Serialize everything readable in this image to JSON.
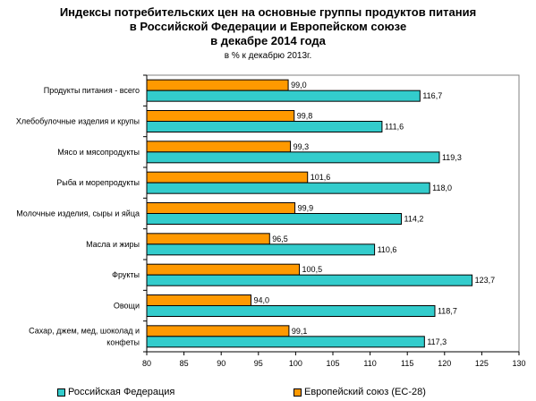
{
  "chart_data": {
    "type": "bar",
    "orientation": "horizontal",
    "title_lines": [
      "Индексы потребительских цен на основные группы продуктов питания",
      "в Российской Федерации и Европейском союзе",
      "в декабре 2014 года"
    ],
    "subtitle": "в % к декабрю 2013г.",
    "categories": [
      [
        "Продукты питания - всего"
      ],
      [
        "Хлебобулочные изделия и крупы"
      ],
      [
        "Мясо и мясопродукты"
      ],
      [
        "Рыба и морепродукты"
      ],
      [
        "Молочные изделия, сыры и яйца"
      ],
      [
        "Масла и жиры"
      ],
      [
        "Фрукты"
      ],
      [
        "Овощи"
      ],
      [
        "Сахар, джем, мед, шоколад и",
        "конфеты"
      ]
    ],
    "series": [
      {
        "name": "Европейский союз (ЕС-28)",
        "color": "#FF9900",
        "values": [
          99.0,
          99.8,
          99.3,
          101.6,
          99.9,
          96.5,
          100.5,
          94.0,
          99.1
        ]
      },
      {
        "name": "Российская Федерация",
        "color": "#33CCCC",
        "values": [
          116.7,
          111.6,
          119.3,
          118.0,
          114.2,
          110.6,
          123.7,
          118.7,
          117.3
        ]
      }
    ],
    "value_labels": {
      "Европейский союз (ЕС-28)": [
        "99,0",
        "99,8",
        "99,3",
        "101,6",
        "99,9",
        "96,5",
        "100,5",
        "94,0",
        "99,1"
      ],
      "Российская Федерация": [
        "116,7",
        "111,6",
        "119,3",
        "118,0",
        "114,2",
        "110,6",
        "123,7",
        "118,7",
        "117,3"
      ]
    },
    "xlim": [
      80,
      130
    ],
    "xticks": [
      80,
      85,
      90,
      95,
      100,
      105,
      110,
      115,
      120,
      125,
      130
    ],
    "grid": false,
    "legend": {
      "placement": "bottom",
      "items": [
        {
          "name": "Российская Федерация",
          "color": "#33CCCC"
        },
        {
          "name": "Европейский союз (ЕС-28)",
          "color": "#FF9900"
        }
      ]
    }
  }
}
